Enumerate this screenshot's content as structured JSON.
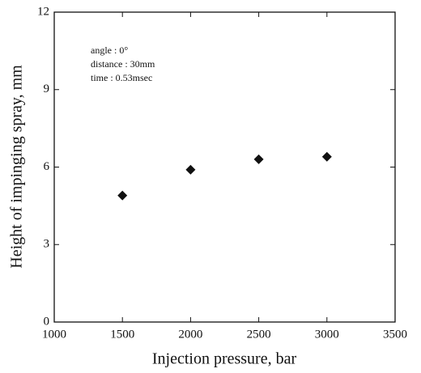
{
  "chart_data": {
    "type": "scatter",
    "x_label": "Injection pressure, bar",
    "y_label": "Height of impinging spray, mm",
    "annotations": [
      "angle : 0°",
      "distance : 30mm",
      "time : 0.53msec"
    ],
    "x": [
      1500,
      2000,
      2500,
      3000
    ],
    "values": [
      4.9,
      5.9,
      6.3,
      6.4
    ],
    "color": "#111111",
    "marker": "diamond",
    "xlim": [
      1000,
      3500
    ],
    "xticks": [
      1000,
      1500,
      2000,
      2500,
      3000,
      3500
    ],
    "ylim": [
      0,
      12
    ],
    "yticks": [
      0,
      3,
      6,
      9,
      12
    ]
  }
}
